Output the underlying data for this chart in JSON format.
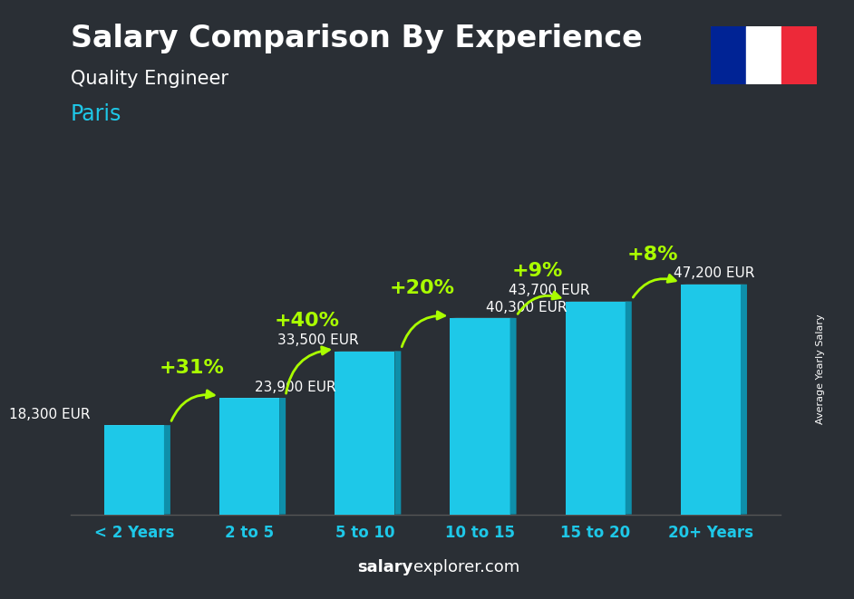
{
  "title": "Salary Comparison By Experience",
  "subtitle": "Quality Engineer",
  "city": "Paris",
  "categories": [
    "< 2 Years",
    "2 to 5",
    "5 to 10",
    "10 to 15",
    "15 to 20",
    "20+ Years"
  ],
  "values": [
    18300,
    23900,
    33500,
    40300,
    43700,
    47200
  ],
  "bar_color": "#1EC8E8",
  "bar_color_side": "#0E8FAA",
  "bar_color_top": "#7DE8F8",
  "bg_color": "#2a2f35",
  "title_color": "#ffffff",
  "subtitle_color": "#ffffff",
  "city_color": "#1EC8E8",
  "value_labels": [
    "18,300 EUR",
    "23,900 EUR",
    "33,500 EUR",
    "40,300 EUR",
    "43,700 EUR",
    "47,200 EUR"
  ],
  "pct_labels": [
    "+31%",
    "+40%",
    "+20%",
    "+9%",
    "+8%"
  ],
  "pct_color": "#aaff00",
  "watermark_bold": "salary",
  "watermark_normal": "explorer.com",
  "watermark_color": "#ffffff",
  "ylabel_rotated": "Average Yearly Salary",
  "ylim": [
    0,
    62000
  ],
  "flag_blue": "#002395",
  "flag_white": "#ffffff",
  "flag_red": "#ED2939",
  "title_fontsize": 24,
  "subtitle_fontsize": 15,
  "city_fontsize": 17,
  "tick_fontsize": 12,
  "value_fontsize": 11,
  "pct_fontsize": 16
}
